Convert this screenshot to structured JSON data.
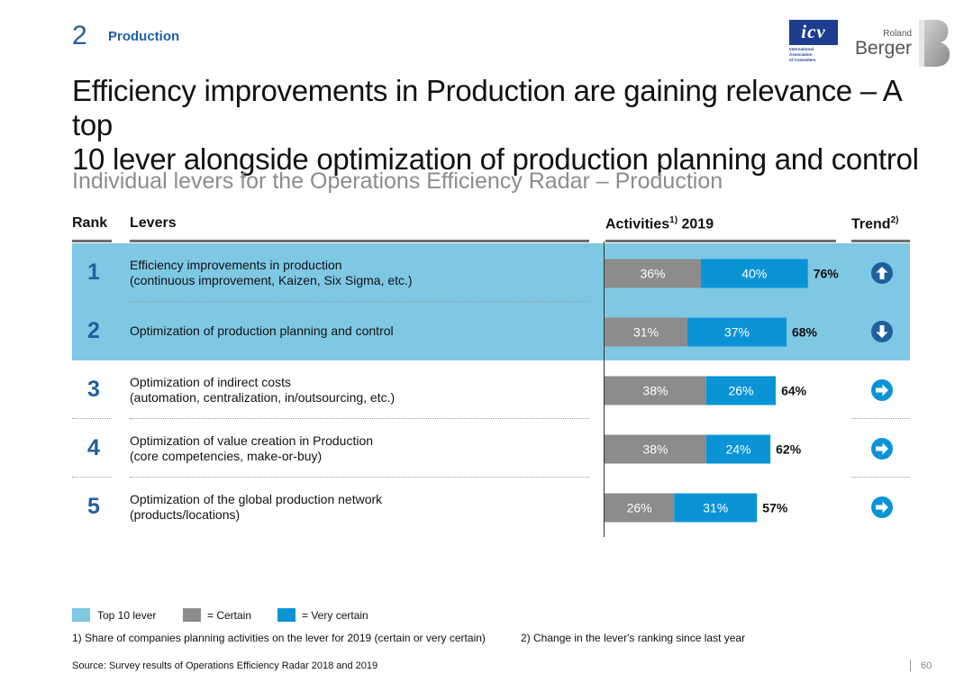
{
  "section": {
    "number": "2",
    "name": "Production"
  },
  "logos": {
    "icv": {
      "mark": "icv",
      "lines": [
        "International",
        "Association",
        "of Controllers"
      ]
    },
    "rb": {
      "line1": "Roland",
      "line2": "Berger"
    }
  },
  "title_line1": "Efficiency improvements in Production are gaining relevance – A top",
  "title_line2": "10 lever alongside optimization of production planning and control",
  "subtitle": "Individual levers for the Operations Efficiency Radar – Production",
  "headers": {
    "rank": "Rank",
    "levers": "Levers",
    "activities_pre": "Activities",
    "activities_sup": "1)",
    "activities_post": " 2019",
    "trend": "Trend",
    "trend_sup": "2)"
  },
  "rows": [
    {
      "rank": "1",
      "line1": "Efficiency improvements in production",
      "line2": "(continuous improvement, Kaizen, Six Sigma, etc.)",
      "trend_icon": "arrow-up-icon",
      "top10": true
    },
    {
      "rank": "2",
      "line1": "Optimization of production planning and control",
      "line2": "",
      "trend_icon": "arrow-down-icon",
      "top10": true
    },
    {
      "rank": "3",
      "line1": "Optimization of indirect costs",
      "line2": "(automation, centralization, in/outsourcing, etc.)",
      "trend_icon": "arrow-right-icon",
      "top10": false
    },
    {
      "rank": "4",
      "line1": "Optimization of value creation in Production",
      "line2": "(core competencies, make-or-buy)",
      "trend_icon": "arrow-right-icon",
      "top10": false
    },
    {
      "rank": "5",
      "line1": "Optimization of the global production network",
      "line2": "(products/locations)",
      "trend_icon": "arrow-right-icon",
      "top10": false
    }
  ],
  "chart_data": {
    "type": "bar",
    "orientation": "horizontal",
    "stacked": true,
    "categories": [
      "Efficiency improvements in production",
      "Optimization of production planning and control",
      "Optimization of indirect costs",
      "Optimization of value creation in Production",
      "Optimization of the global production network"
    ],
    "series": [
      {
        "name": "Certain",
        "values": [
          36,
          31,
          38,
          38,
          26
        ],
        "labels": [
          "36%",
          "31%",
          "38%",
          "38%",
          "26%"
        ],
        "color": "#8c8c8c"
      },
      {
        "name": "Very certain",
        "values": [
          40,
          37,
          26,
          24,
          31
        ],
        "labels": [
          "40%",
          "37%",
          "26%",
          "24%",
          "31%"
        ],
        "color": "#0a94d6"
      }
    ],
    "totals": [
      76,
      68,
      64,
      62,
      57
    ],
    "total_labels": [
      "76%",
      "68%",
      "64%",
      "62%",
      "57%"
    ],
    "title": "Activities 2019",
    "unit": "%"
  },
  "legend": {
    "top10": "Top 10 lever",
    "certain": "= Certain",
    "very_certain": "= Very certain"
  },
  "colors": {
    "accent": "#1f5f9e",
    "top10_band": "#7ec8e3",
    "certain": "#8c8c8c",
    "very_certain": "#0a94d6"
  },
  "footnotes": {
    "f1": "1) Share of companies planning activities on the lever for 2019 (certain or very certain)",
    "f2": "2) Change in the lever's ranking since last year"
  },
  "source": "Source: Survey results of Operations Efficiency Radar 2018 and 2019",
  "page_number": "60"
}
